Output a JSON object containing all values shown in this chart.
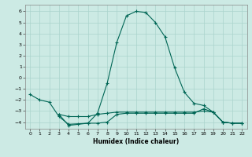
{
  "title": "",
  "xlabel": "Humidex (Indice chaleur)",
  "ylabel": "",
  "bg_color": "#cceae4",
  "grid_color": "#aad4cc",
  "line_color": "#006655",
  "xlim": [
    -0.5,
    22.5
  ],
  "ylim": [
    -4.6,
    6.6
  ],
  "xticks": [
    0,
    1,
    2,
    3,
    4,
    5,
    6,
    7,
    8,
    9,
    10,
    11,
    12,
    13,
    14,
    15,
    16,
    17,
    18,
    19,
    20,
    21,
    22
  ],
  "yticks": [
    -4,
    -3,
    -2,
    -1,
    0,
    1,
    2,
    3,
    4,
    5,
    6
  ],
  "line1_x": [
    0,
    1,
    2,
    3,
    4,
    6,
    7,
    8,
    9,
    10,
    11,
    12,
    13,
    14,
    15,
    16,
    17,
    18,
    19,
    20,
    21,
    22
  ],
  "line1_y": [
    -1.5,
    -2.0,
    -2.2,
    -3.5,
    -4.2,
    -4.1,
    -3.2,
    -0.5,
    3.2,
    5.6,
    6.0,
    5.9,
    5.0,
    3.7,
    0.9,
    -1.3,
    -2.3,
    -2.5,
    -3.1,
    -4.0,
    -4.1,
    -4.1
  ],
  "line2_x": [
    3,
    4,
    5,
    6,
    7,
    8,
    9,
    10,
    11,
    12,
    13,
    14,
    15,
    16,
    17,
    18,
    19,
    20,
    21,
    22
  ],
  "line2_y": [
    -3.3,
    -4.3,
    -4.2,
    -4.1,
    -4.1,
    -4.0,
    -3.3,
    -3.2,
    -3.2,
    -3.2,
    -3.2,
    -3.2,
    -3.2,
    -3.2,
    -3.2,
    -2.8,
    -3.1,
    -4.0,
    -4.1,
    -4.1
  ],
  "line3_x": [
    3,
    4,
    5,
    6,
    7,
    8,
    9,
    10,
    11,
    12,
    13,
    14,
    15,
    16,
    17,
    18,
    19,
    20,
    21,
    22
  ],
  "line3_y": [
    -3.3,
    -3.5,
    -3.5,
    -3.5,
    -3.3,
    -3.2,
    -3.1,
    -3.1,
    -3.1,
    -3.1,
    -3.1,
    -3.1,
    -3.1,
    -3.1,
    -3.1,
    -3.0,
    -3.1,
    -4.0,
    -4.1,
    -4.1
  ]
}
